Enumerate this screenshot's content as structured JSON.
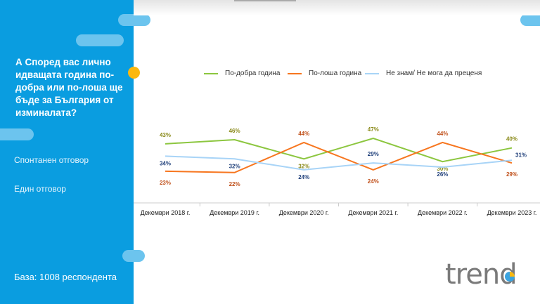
{
  "sidebar": {
    "question": "А Според вас лично идващата година по-добра или по-лоша ще бъде за България от изминалата?",
    "note1": "Спонтанен отговор",
    "note2": "Един отговор",
    "base": "База:  1008 респондента"
  },
  "logo": "trend",
  "chart_data": {
    "type": "line",
    "title": "",
    "categories": [
      "Декември 2018 г.",
      "Декември 2019 г.",
      "Декември 2020 г.",
      "Декември 2021 г.",
      "Декември 2022 г.",
      "Декември 2023 г."
    ],
    "legend_placement": "top",
    "grid": false,
    "series": [
      {
        "name": "По-добра година",
        "color": "#8cc63f",
        "label_color": "#8a8a1a",
        "values": [
          43,
          46,
          32,
          47,
          30,
          40
        ],
        "label_pos": [
          "above",
          "above",
          "below",
          "above",
          "below",
          "above"
        ]
      },
      {
        "name": "По-лоша година",
        "color": "#f7761f",
        "label_color": "#c0501a",
        "values": [
          23,
          22,
          44,
          24,
          44,
          29
        ],
        "label_pos": [
          "below",
          "below",
          "above",
          "below",
          "above",
          "below"
        ]
      },
      {
        "name": "Не знам/ Не мога да преценя",
        "color": "#a8d4f7",
        "label_color": "#1f3f7a",
        "values": [
          34,
          32,
          24,
          29,
          26,
          31
        ],
        "label_pos": [
          "below",
          "below",
          "below",
          "above",
          "below",
          "right"
        ]
      }
    ],
    "value_suffix": "%"
  }
}
